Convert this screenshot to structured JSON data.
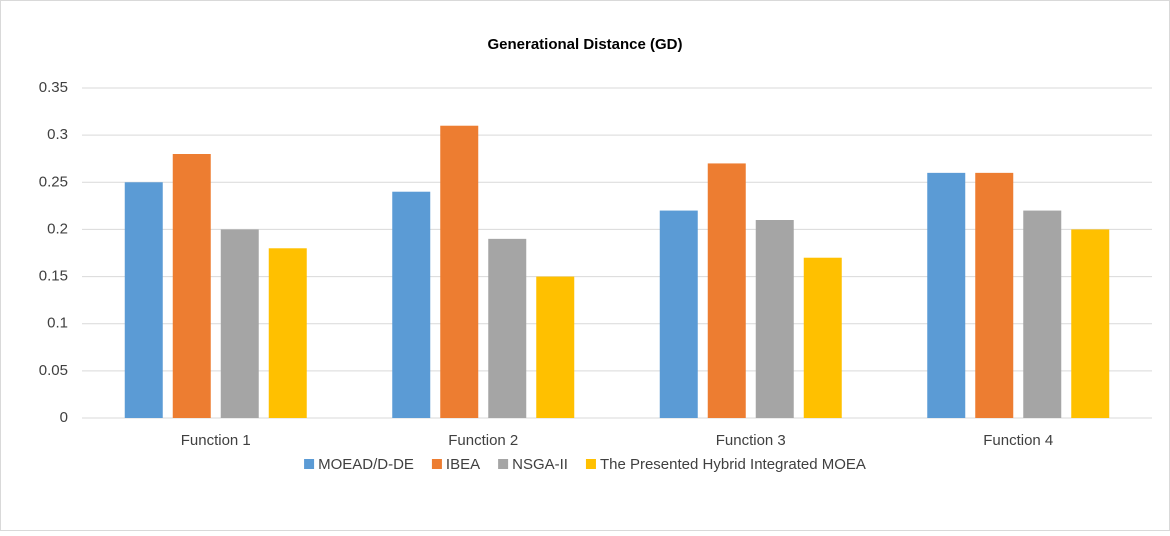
{
  "chart_data": {
    "type": "bar",
    "title": "Generational Distance (GD)",
    "categories": [
      "Function 1",
      "Function 2",
      "Function 3",
      "Function 4"
    ],
    "series": [
      {
        "name": "MOEAD/D-DE",
        "color": "#5b9bd5",
        "values": [
          0.25,
          0.24,
          0.22,
          0.26
        ]
      },
      {
        "name": "IBEA",
        "color": "#ed7d31",
        "values": [
          0.28,
          0.31,
          0.27,
          0.26
        ]
      },
      {
        "name": "NSGA-II",
        "color": "#a5a5a5",
        "values": [
          0.2,
          0.19,
          0.21,
          0.22
        ]
      },
      {
        "name": "The Presented Hybrid Integrated MOEA",
        "color": "#ffc000",
        "values": [
          0.18,
          0.15,
          0.17,
          0.2
        ]
      }
    ],
    "ylim": [
      0,
      0.35
    ],
    "yticks": [
      0,
      0.05,
      0.1,
      0.15,
      0.2,
      0.25,
      0.3,
      0.35
    ],
    "grid": true,
    "legend": "bottom"
  }
}
